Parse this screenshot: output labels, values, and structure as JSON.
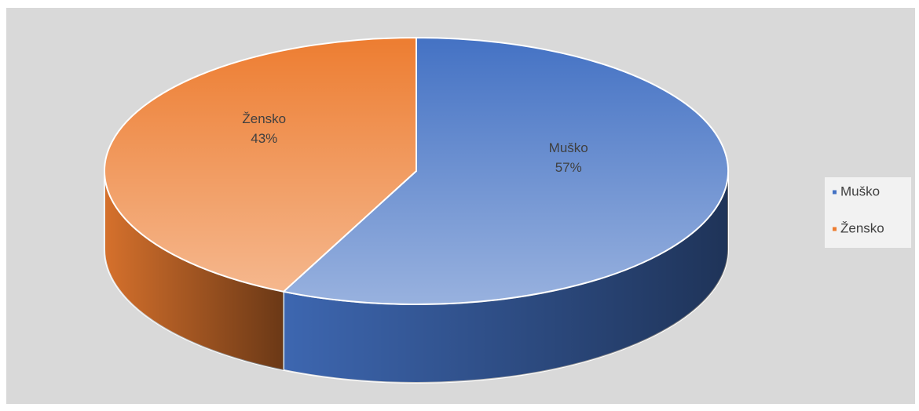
{
  "chart_data": {
    "type": "pie",
    "categories": [
      "Muško",
      "Žensko"
    ],
    "values": [
      57,
      43
    ],
    "value_labels": [
      "57%",
      "43%"
    ],
    "colors": [
      "#4472c4",
      "#ed7d31"
    ],
    "legend": "right"
  }
}
